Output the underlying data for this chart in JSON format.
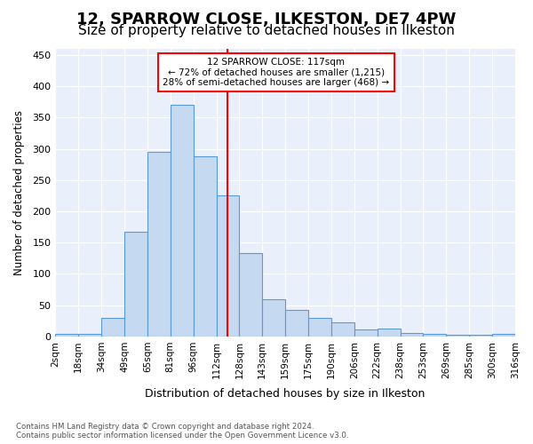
{
  "title1": "12, SPARROW CLOSE, ILKESTON, DE7 4PW",
  "title2": "Size of property relative to detached houses in Ilkeston",
  "xlabel": "Distribution of detached houses by size in Ilkeston",
  "ylabel": "Number of detached properties",
  "footnote": "Contains HM Land Registry data © Crown copyright and database right 2024.\nContains public sector information licensed under the Open Government Licence v3.0.",
  "bin_labels": [
    "2sqm",
    "18sqm",
    "34sqm",
    "49sqm",
    "65sqm",
    "81sqm",
    "96sqm",
    "112sqm",
    "128sqm",
    "143sqm",
    "159sqm",
    "175sqm",
    "190sqm",
    "206sqm",
    "222sqm",
    "238sqm",
    "253sqm",
    "269sqm",
    "285sqm",
    "300sqm",
    "316sqm"
  ],
  "bar_values": [
    4,
    4,
    30,
    168,
    295,
    370,
    288,
    225,
    134,
    60,
    43,
    30,
    23,
    11,
    13,
    6,
    4,
    3,
    3,
    4
  ],
  "bar_color": "#c5d9f1",
  "bar_edge_color": "#5b9bd5",
  "vline_position": 7.5,
  "vline_color": "red",
  "annotation_title": "12 SPARROW CLOSE: 117sqm",
  "annotation_line1": "← 72% of detached houses are smaller (1,215)",
  "annotation_line2": "28% of semi-detached houses are larger (468) →",
  "annotation_box_color": "white",
  "annotation_box_edge": "red",
  "ylim": [
    0,
    460
  ],
  "yticks": [
    0,
    50,
    100,
    150,
    200,
    250,
    300,
    350,
    400,
    450
  ],
  "bg_color": "#eaf0fb",
  "title1_fontsize": 13,
  "title2_fontsize": 11
}
